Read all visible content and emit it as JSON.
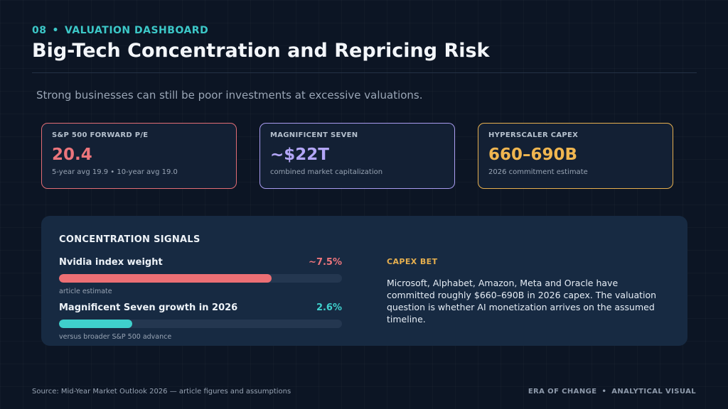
{
  "header": {
    "section_number": "08",
    "separator": "•",
    "section_label": "VALUATION DASHBOARD",
    "title": "Big-Tech Concentration and Repricing Risk",
    "subtitle": "Strong businesses can still be poor investments at excessive valuations."
  },
  "cards": [
    {
      "label": "S&P 500 FORWARD P/E",
      "value": "20.4",
      "note": "5-year avg 19.9 • 10-year avg 19.0",
      "accent": "#e26d75"
    },
    {
      "label": "MAGNIFICENT SEVEN",
      "value": "~$22T",
      "note": "combined market capitalization",
      "accent": "#a99cf0"
    },
    {
      "label": "HYPERSCALER CAPEX",
      "value": "660–690B",
      "note": "2026 commitment estimate",
      "accent": "#e7b04f"
    }
  ],
  "signals": {
    "heading": "CONCENTRATION SIGNALS",
    "items": [
      {
        "name": "Nvidia index weight",
        "value": "~7.5%",
        "note": "article estimate",
        "fill_fraction": 0.75,
        "color": "#ec6f74"
      },
      {
        "name": "Magnificent Seven growth in 2026",
        "value": "2.6%",
        "note": "versus broader S&P 500 advance",
        "fill_fraction": 0.26,
        "color": "#3fd0cc"
      }
    ]
  },
  "capex": {
    "heading": "CAPEX BET",
    "body": "Microsoft, Alphabet, Amazon, Meta and Oracle have committed roughly $660–690B in 2026 capex. The valuation question is whether AI monetization arrives on the assumed timeline."
  },
  "footer": {
    "source": "Source: Mid-Year Market Outlook 2026 — article figures and assumptions",
    "brand_left": "ERA OF CHANGE",
    "separator": "•",
    "brand_right": "ANALYTICAL VISUAL"
  }
}
